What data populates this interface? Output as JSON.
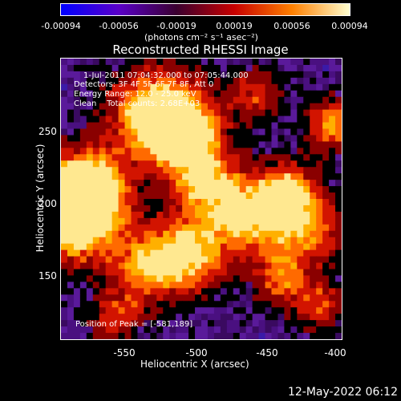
{
  "colorbar": {
    "ticks": [
      "-0.00094",
      "-0.00056",
      "-0.00019",
      "0.00019",
      "0.00056",
      "0.00094"
    ],
    "units": "(photons cm⁻² s⁻¹ asec⁻²)",
    "colors": [
      "#0000ff",
      "#5a00c8",
      "#3a0030",
      "#c80000",
      "#ff8000",
      "#ffffd0"
    ]
  },
  "title": "Reconstructed RHESSI Image",
  "info": {
    "line1": "1-Jul-2011 07:04:32.000 to 07:05:44.000",
    "line2": "Detectors: 3F 4F 5F 6F 7F 8F, Att 0",
    "line3": "Energy Range: 12.0 - 25.0 keV",
    "line4": "Clean    Total counts: 2.68E+03",
    "peak": "Position of Peak = [-581,189]"
  },
  "axes": {
    "xlabel": "Heliocentric X (arcsec)",
    "ylabel": "Heliocentric Y (arcsec)",
    "xticks": [
      "-550",
      "-500",
      "-450",
      "-400"
    ],
    "yticks": [
      "250",
      "200",
      "150"
    ]
  },
  "timestamp": "12-May-2022 06:12"
}
